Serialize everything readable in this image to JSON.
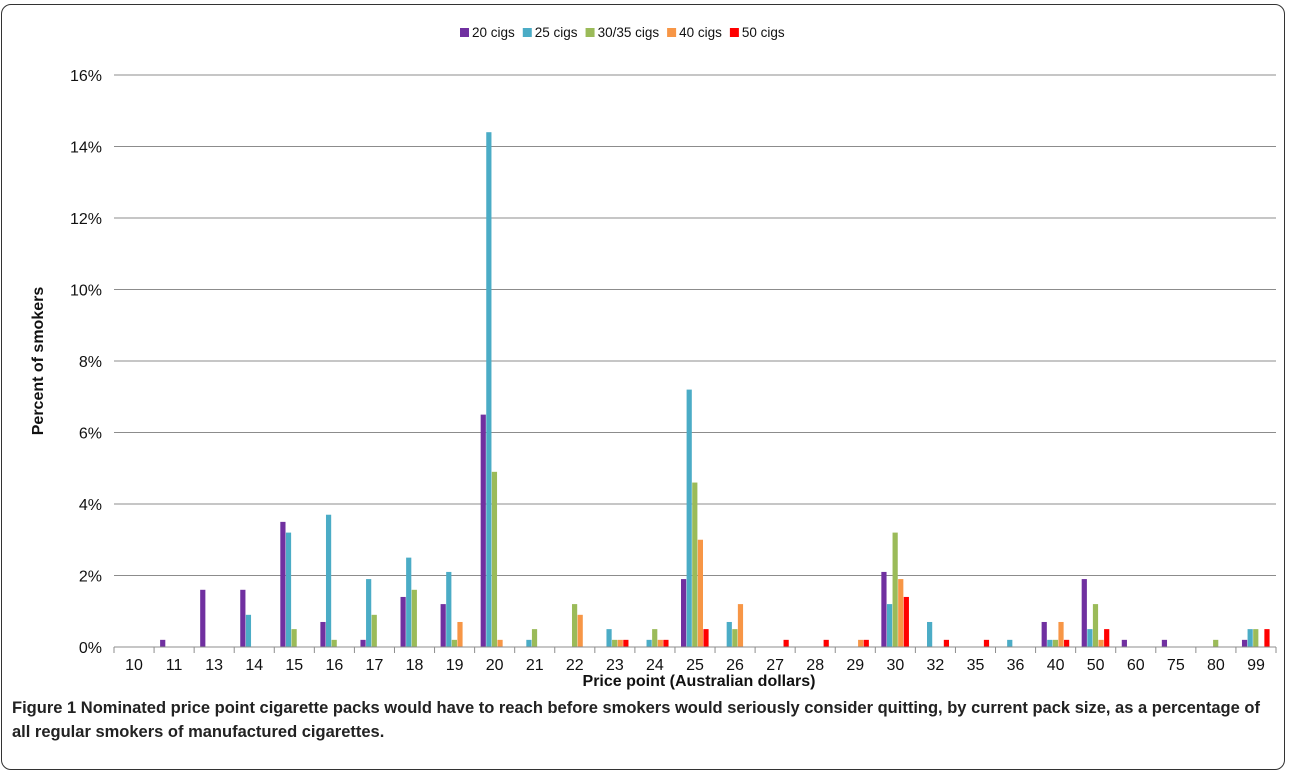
{
  "figure": {
    "label": "Figure 1",
    "caption": "Nominated price point cigarette packs would have to reach before smokers would seriously consider quitting, by current pack size, as a percentage of all regular smokers of manufactured cigarettes."
  },
  "chart_data": {
    "type": "bar",
    "xlabel": "Price  point (Australian dollars)",
    "ylabel": "Percent of  smokers",
    "ylim": [
      0,
      16
    ],
    "yticks": [
      0,
      2,
      4,
      6,
      8,
      10,
      12,
      14,
      16
    ],
    "ytick_labels": [
      "0%",
      "2%",
      "4%",
      "6%",
      "8%",
      "10%",
      "12%",
      "14%",
      "16%"
    ],
    "grid": true,
    "legend_position": "top",
    "categories": [
      "10",
      "11",
      "13",
      "14",
      "15",
      "16",
      "17",
      "18",
      "19",
      "20",
      "21",
      "22",
      "23",
      "24",
      "25",
      "26",
      "27",
      "28",
      "29",
      "30",
      "32",
      "35",
      "36",
      "40",
      "50",
      "60",
      "75",
      "80",
      "99"
    ],
    "series": [
      {
        "name": "20 cigs",
        "color": "#7030a0",
        "values": [
          0,
          0.2,
          1.6,
          1.6,
          3.5,
          0.7,
          0.2,
          1.4,
          1.2,
          6.5,
          0,
          0,
          0,
          0,
          1.9,
          0,
          0,
          0,
          0,
          2.1,
          0,
          0,
          0,
          0.7,
          1.9,
          0.2,
          0.2,
          0,
          0.2
        ]
      },
      {
        "name": "25 cigs",
        "color": "#4bacc6",
        "values": [
          0,
          0,
          0,
          0.9,
          3.2,
          3.7,
          1.9,
          2.5,
          2.1,
          14.4,
          0.2,
          0,
          0.5,
          0.2,
          7.2,
          0.7,
          0,
          0,
          0,
          1.2,
          0.7,
          0,
          0.2,
          0.2,
          0.5,
          0,
          0,
          0,
          0.5
        ]
      },
      {
        "name": "30/35 cigs",
        "color": "#9bbb59",
        "values": [
          0,
          0,
          0,
          0,
          0.5,
          0.2,
          0.9,
          1.6,
          0.2,
          4.9,
          0.5,
          1.2,
          0.2,
          0.5,
          4.6,
          0.5,
          0,
          0,
          0,
          3.2,
          0,
          0,
          0,
          0.2,
          1.2,
          0,
          0,
          0.2,
          0.5
        ]
      },
      {
        "name": "40 cigs",
        "color": "#f79646",
        "values": [
          0,
          0,
          0,
          0,
          0,
          0,
          0,
          0,
          0.7,
          0.2,
          0,
          0.9,
          0.2,
          0.2,
          3.0,
          1.2,
          0,
          0,
          0.2,
          1.9,
          0,
          0,
          0,
          0.7,
          0.2,
          0,
          0,
          0,
          0
        ]
      },
      {
        "name": "50 cigs",
        "color": "#ff0000",
        "values": [
          0,
          0,
          0,
          0,
          0,
          0,
          0,
          0,
          0,
          0,
          0,
          0,
          0.2,
          0.2,
          0.5,
          0,
          0.2,
          0.2,
          0.2,
          1.4,
          0.2,
          0.2,
          0,
          0.2,
          0.5,
          0,
          0,
          0,
          0.5
        ]
      }
    ]
  }
}
